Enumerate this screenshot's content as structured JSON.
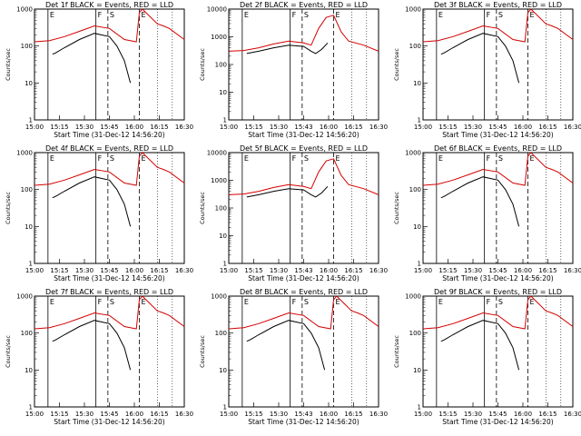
{
  "chart_data": [
    {
      "type": "line",
      "title": "Det 1f BLACK = Events, RED = LLD",
      "xlabel": "Start Time (31-Dec-12 14:56:20)",
      "ylabel": "Counts/sec",
      "x_ticks": [
        "15:00",
        "15:15",
        "15:30",
        "15:45",
        "16:00",
        "16:15",
        "16:30"
      ],
      "y_ticks": [
        "1",
        "10",
        "100",
        "1000"
      ],
      "ylim": [
        1,
        1000
      ],
      "y_scale": "log",
      "xlim_min": [
        0,
        100
      ],
      "markers": [
        "E",
        "F",
        "S",
        "E"
      ],
      "series": [
        {
          "name": "Events",
          "color": "#000000",
          "x": [
            12,
            14,
            20,
            30,
            40,
            50,
            55,
            60,
            64
          ],
          "y": [
            60,
            65,
            90,
            150,
            220,
            180,
            100,
            40,
            10
          ]
        },
        {
          "name": "LLD",
          "color": "#d40000",
          "x": [
            0,
            5,
            10,
            20,
            30,
            40,
            50,
            60,
            68,
            70,
            72,
            82,
            86,
            90,
            100
          ],
          "y": [
            130,
            135,
            140,
            180,
            250,
            350,
            300,
            150,
            130,
            800,
            1000,
            400,
            350,
            300,
            150
          ]
        }
      ]
    },
    {
      "type": "line",
      "title": "Det 2f BLACK = Events, RED = LLD",
      "xlabel": "Start Time (31-Dec-12 14:56:20)",
      "ylabel": "Counts/sec",
      "x_ticks": [
        "15:00",
        "15:15",
        "15:30",
        "15:43",
        "16:00",
        "16:15",
        "16:30"
      ],
      "y_ticks": [
        "1",
        "10",
        "100",
        "1000",
        "10000"
      ],
      "ylim": [
        1,
        10000
      ],
      "y_scale": "log",
      "xlim_min": [
        0,
        100
      ],
      "markers": [
        "E",
        "F",
        "S",
        "E"
      ],
      "series": [
        {
          "name": "Events",
          "color": "#000000",
          "x": [
            12,
            20,
            30,
            40,
            50,
            55,
            58,
            62,
            66
          ],
          "y": [
            250,
            300,
            400,
            500,
            450,
            300,
            250,
            350,
            600
          ]
        },
        {
          "name": "LLD",
          "color": "#d40000",
          "x": [
            0,
            10,
            20,
            30,
            40,
            50,
            55,
            60,
            65,
            70,
            75,
            80,
            90,
            100
          ],
          "y": [
            300,
            320,
            400,
            550,
            700,
            600,
            500,
            2000,
            5000,
            6000,
            1500,
            700,
            500,
            300
          ]
        }
      ]
    },
    {
      "type": "line",
      "title": "Det 3f BLACK = Events, RED = LLD",
      "xlabel": "Start Time (31-Dec-12 14:56:20)",
      "ylabel": "Counts/sec",
      "x_ticks": [
        "15:00",
        "15:15",
        "15:30",
        "15:45",
        "16:00",
        "16:15",
        "16:30"
      ],
      "y_ticks": [
        "1",
        "10",
        "100",
        "1000"
      ],
      "ylim": [
        1,
        1000
      ],
      "y_scale": "log",
      "xlim_min": [
        0,
        100
      ],
      "markers": [
        "E",
        "F",
        "S",
        "E"
      ],
      "series": [
        {
          "name": "Events",
          "color": "#000000",
          "x": [
            12,
            14,
            20,
            30,
            40,
            50,
            55,
            60,
            64
          ],
          "y": [
            60,
            65,
            90,
            150,
            220,
            180,
            100,
            40,
            10
          ]
        },
        {
          "name": "LLD",
          "color": "#d40000",
          "x": [
            0,
            5,
            10,
            20,
            30,
            40,
            50,
            60,
            68,
            70,
            72,
            82,
            86,
            90,
            100
          ],
          "y": [
            130,
            135,
            140,
            180,
            250,
            350,
            300,
            150,
            130,
            800,
            1000,
            400,
            350,
            300,
            150
          ]
        }
      ]
    },
    {
      "type": "line",
      "title": "Det 4f BLACK = Events, RED = LLD",
      "xlabel": "Start Time (31-Dec-12 14:56:20)",
      "ylabel": "Counts/sec",
      "x_ticks": [
        "15:00",
        "15:15",
        "15:30",
        "15:45",
        "16:00",
        "16:15",
        "16:30"
      ],
      "y_ticks": [
        "1",
        "10",
        "100",
        "1000"
      ],
      "ylim": [
        1,
        1000
      ],
      "y_scale": "log",
      "xlim_min": [
        0,
        100
      ],
      "markers": [
        "E",
        "F",
        "S",
        "E"
      ],
      "series": [
        {
          "name": "Events",
          "color": "#000000",
          "x": [
            12,
            14,
            20,
            30,
            40,
            50,
            55,
            60,
            64
          ],
          "y": [
            60,
            65,
            90,
            150,
            220,
            180,
            100,
            40,
            10
          ]
        },
        {
          "name": "LLD",
          "color": "#d40000",
          "x": [
            0,
            5,
            10,
            20,
            30,
            40,
            50,
            60,
            68,
            70,
            72,
            82,
            86,
            90,
            100
          ],
          "y": [
            130,
            135,
            140,
            180,
            250,
            350,
            300,
            150,
            130,
            800,
            1000,
            400,
            350,
            300,
            150
          ]
        }
      ]
    },
    {
      "type": "line",
      "title": "Det 5f BLACK = Events, RED = LLD",
      "xlabel": "Start Time (31-Dec-12 14:56:20)",
      "ylabel": "Counts/sec",
      "x_ticks": [
        "15:00",
        "15:15",
        "15:30",
        "15:43",
        "16:00",
        "16:15",
        "16:30"
      ],
      "y_ticks": [
        "1",
        "10",
        "100",
        "1000",
        "10000"
      ],
      "ylim": [
        1,
        10000
      ],
      "y_scale": "log",
      "xlim_min": [
        0,
        100
      ],
      "markers": [
        "E",
        "F",
        "S",
        "E"
      ],
      "series": [
        {
          "name": "Events",
          "color": "#000000",
          "x": [
            12,
            20,
            30,
            40,
            50,
            55,
            58,
            62,
            66
          ],
          "y": [
            250,
            300,
            400,
            500,
            450,
            300,
            250,
            350,
            600
          ]
        },
        {
          "name": "LLD",
          "color": "#d40000",
          "x": [
            0,
            10,
            20,
            30,
            40,
            50,
            55,
            60,
            65,
            70,
            75,
            80,
            90,
            100
          ],
          "y": [
            300,
            320,
            400,
            550,
            700,
            600,
            500,
            2000,
            5000,
            6000,
            1500,
            700,
            500,
            300
          ]
        }
      ]
    },
    {
      "type": "line",
      "title": "Det 6f BLACK = Events, RED = LLD",
      "xlabel": "Start Time (31-Dec-12 14:56:20)",
      "ylabel": "Counts/sec",
      "x_ticks": [
        "15:00",
        "15:15",
        "15:30",
        "15:45",
        "16:00",
        "16:15",
        "16:30"
      ],
      "y_ticks": [
        "1",
        "10",
        "100",
        "1000"
      ],
      "ylim": [
        1,
        1000
      ],
      "y_scale": "log",
      "xlim_min": [
        0,
        100
      ],
      "markers": [
        "E",
        "F",
        "S",
        "E"
      ],
      "series": [
        {
          "name": "Events",
          "color": "#000000",
          "x": [
            12,
            14,
            20,
            30,
            40,
            50,
            55,
            60,
            64
          ],
          "y": [
            60,
            65,
            90,
            150,
            220,
            180,
            100,
            40,
            10
          ]
        },
        {
          "name": "LLD",
          "color": "#d40000",
          "x": [
            0,
            5,
            10,
            20,
            30,
            40,
            50,
            60,
            68,
            70,
            72,
            82,
            86,
            90,
            100
          ],
          "y": [
            130,
            135,
            140,
            180,
            250,
            350,
            300,
            150,
            130,
            800,
            1000,
            400,
            350,
            300,
            150
          ]
        }
      ]
    },
    {
      "type": "line",
      "title": "Det 7f BLACK = Events, RED = LLD",
      "xlabel": "Start Time (31-Dec-12 14:56:20)",
      "ylabel": "Counts/sec",
      "x_ticks": [
        "15:00",
        "15:15",
        "15:30",
        "15:45",
        "16:00",
        "16:15",
        "16:30"
      ],
      "y_ticks": [
        "1",
        "10",
        "100",
        "1000"
      ],
      "ylim": [
        1,
        1000
      ],
      "y_scale": "log",
      "xlim_min": [
        0,
        100
      ],
      "markers": [
        "E",
        "F",
        "S",
        "E"
      ],
      "series": [
        {
          "name": "Events",
          "color": "#000000",
          "x": [
            12,
            14,
            20,
            30,
            40,
            50,
            55,
            60,
            64
          ],
          "y": [
            60,
            65,
            90,
            150,
            220,
            180,
            100,
            40,
            10
          ]
        },
        {
          "name": "LLD",
          "color": "#d40000",
          "x": [
            0,
            5,
            10,
            20,
            30,
            40,
            50,
            60,
            68,
            70,
            72,
            82,
            86,
            90,
            100
          ],
          "y": [
            130,
            135,
            140,
            180,
            250,
            350,
            300,
            150,
            130,
            800,
            1000,
            400,
            350,
            300,
            150
          ]
        }
      ]
    },
    {
      "type": "line",
      "title": "Det 8f BLACK = Events, RED = LLD",
      "xlabel": "Start Time (31-Dec-12 14:56:20)",
      "ylabel": "Counts/sec",
      "x_ticks": [
        "15:00",
        "15:15",
        "15:30",
        "15:43",
        "16:00",
        "16:15",
        "16:30"
      ],
      "y_ticks": [
        "1",
        "10",
        "100",
        "1000"
      ],
      "ylim": [
        1,
        1000
      ],
      "y_scale": "log",
      "xlim_min": [
        0,
        100
      ],
      "markers": [
        "E",
        "F",
        "S",
        "E"
      ],
      "series": [
        {
          "name": "Events",
          "color": "#000000",
          "x": [
            12,
            14,
            20,
            30,
            40,
            50,
            55,
            60,
            64
          ],
          "y": [
            60,
            65,
            90,
            150,
            220,
            180,
            100,
            40,
            10
          ]
        },
        {
          "name": "LLD",
          "color": "#d40000",
          "x": [
            0,
            5,
            10,
            20,
            30,
            40,
            50,
            60,
            68,
            70,
            72,
            82,
            86,
            90,
            100
          ],
          "y": [
            130,
            135,
            140,
            180,
            250,
            350,
            300,
            150,
            130,
            800,
            1000,
            400,
            350,
            300,
            150
          ]
        }
      ]
    },
    {
      "type": "line",
      "title": "Det 9f BLACK = Events, RED = LLD",
      "xlabel": "Start Time (31-Dec-12 14:56:20)",
      "ylabel": "Counts/sec",
      "x_ticks": [
        "15:00",
        "15:15",
        "15:30",
        "15:45",
        "16:00",
        "16:15",
        "16:30"
      ],
      "y_ticks": [
        "1",
        "10",
        "100",
        "1000"
      ],
      "ylim": [
        1,
        1000
      ],
      "y_scale": "log",
      "xlim_min": [
        0,
        100
      ],
      "markers": [
        "E",
        "F",
        "S",
        "E"
      ],
      "series": [
        {
          "name": "Events",
          "color": "#000000",
          "x": [
            12,
            14,
            20,
            30,
            40,
            50,
            55,
            60,
            64
          ],
          "y": [
            60,
            65,
            90,
            150,
            220,
            180,
            100,
            40,
            10
          ]
        },
        {
          "name": "LLD",
          "color": "#d40000",
          "x": [
            0,
            5,
            10,
            20,
            30,
            40,
            50,
            60,
            68,
            70,
            72,
            82,
            86,
            90,
            100
          ],
          "y": [
            130,
            135,
            140,
            180,
            250,
            350,
            300,
            150,
            130,
            800,
            1000,
            400,
            350,
            300,
            150
          ]
        }
      ]
    }
  ]
}
